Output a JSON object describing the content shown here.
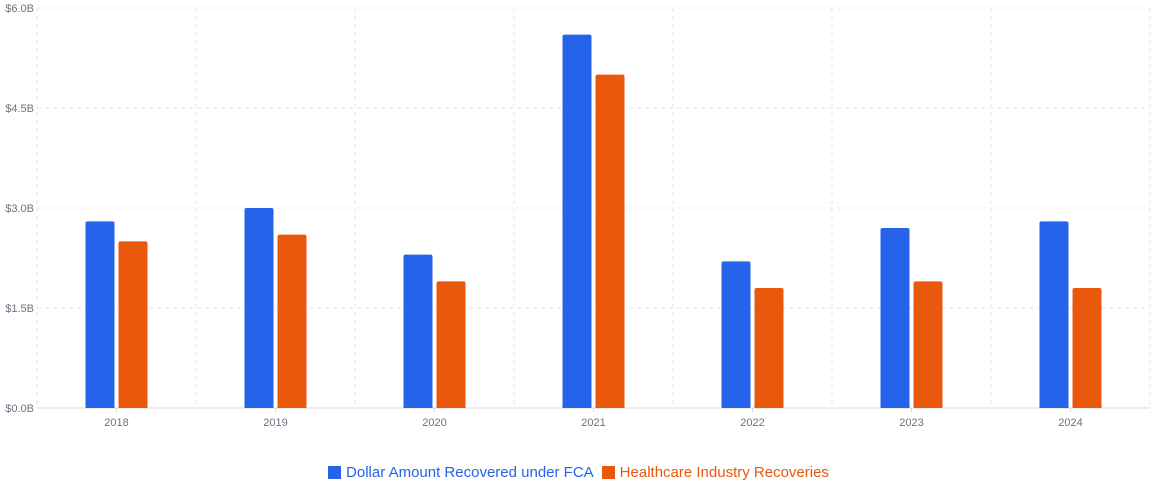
{
  "chart_data": {
    "type": "bar",
    "categories": [
      "2018",
      "2019",
      "2020",
      "2021",
      "2022",
      "2023",
      "2024"
    ],
    "series": [
      {
        "name": "Dollar Amount Recovered under FCA",
        "color": "#2563eb",
        "values": [
          2.8,
          3.0,
          2.3,
          5.6,
          2.2,
          2.7,
          2.8
        ]
      },
      {
        "name": "Healthcare Industry Recoveries",
        "color": "#ea580c",
        "values": [
          2.5,
          2.6,
          1.9,
          5.0,
          1.8,
          1.9,
          1.8
        ]
      }
    ],
    "y_ticks": [
      0,
      1.5,
      3.0,
      4.5,
      6.0
    ],
    "y_tick_labels": [
      "$0.0B",
      "$1.5B",
      "$3.0B",
      "$4.5B",
      "$6.0B"
    ],
    "ylim": [
      0,
      6.0
    ],
    "grid": true,
    "legend_position": "bottom-center"
  }
}
